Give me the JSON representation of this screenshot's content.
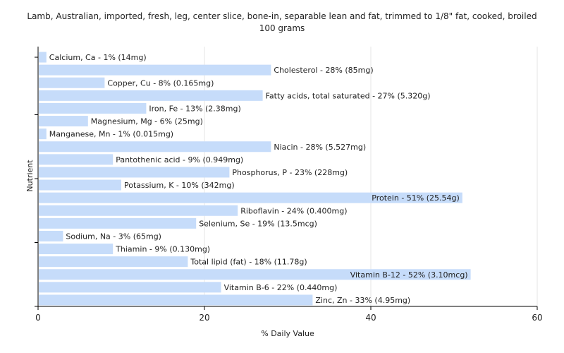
{
  "chart_data": {
    "type": "bar",
    "orientation": "horizontal",
    "title": "Lamb, Australian, imported, fresh, leg, center slice, bone-in, separable lean and fat, trimmed to 1/8\" fat, cooked, broiled 100 grams",
    "title_lines": [
      "Lamb, Australian, imported, fresh, leg, center slice, bone-in, separable lean and fat, trimmed to 1/8\" fat, cooked, broiled",
      "100 grams"
    ],
    "xlabel": "% Daily Value",
    "ylabel": "Nutrient",
    "xlim": [
      0,
      60
    ],
    "xticks": [
      "0",
      "20",
      "40",
      "60"
    ],
    "grid": true,
    "bar_color": "#c6dcfa",
    "categories": [
      "Calcium, Ca",
      "Cholesterol",
      "Copper, Cu",
      "Fatty acids, total saturated",
      "Iron, Fe",
      "Magnesium, Mg",
      "Manganese, Mn",
      "Niacin",
      "Pantothenic acid",
      "Phosphorus, P",
      "Potassium, K",
      "Protein",
      "Riboflavin",
      "Selenium, Se",
      "Sodium, Na",
      "Thiamin",
      "Total lipid (fat)",
      "Vitamin B-12",
      "Vitamin B-6",
      "Zinc, Zn"
    ],
    "values": [
      1,
      28,
      8,
      27,
      13,
      6,
      1,
      28,
      9,
      23,
      10,
      51,
      24,
      19,
      3,
      9,
      18,
      52,
      22,
      33
    ],
    "labels": [
      "Calcium, Ca - 1% (14mg)",
      "Cholesterol - 28% (85mg)",
      "Copper, Cu - 8% (0.165mg)",
      "Fatty acids, total saturated - 27% (5.320g)",
      "Iron, Fe - 13% (2.38mg)",
      "Magnesium, Mg - 6% (25mg)",
      "Manganese, Mn - 1% (0.015mg)",
      "Niacin - 28% (5.527mg)",
      "Pantothenic acid - 9% (0.949mg)",
      "Phosphorus, P - 23% (228mg)",
      "Potassium, K - 10% (342mg)",
      "Protein - 51% (25.54g)",
      "Riboflavin - 24% (0.400mg)",
      "Selenium, Se - 19% (13.5mcg)",
      "Sodium, Na - 3% (65mg)",
      "Thiamin - 9% (0.130mg)",
      "Total lipid (fat) - 18% (11.78g)",
      "Vitamin B-12 - 52% (3.10mcg)",
      "Vitamin B-6 - 22% (0.440mg)",
      "Zinc, Zn - 33% (4.95mg)"
    ]
  }
}
